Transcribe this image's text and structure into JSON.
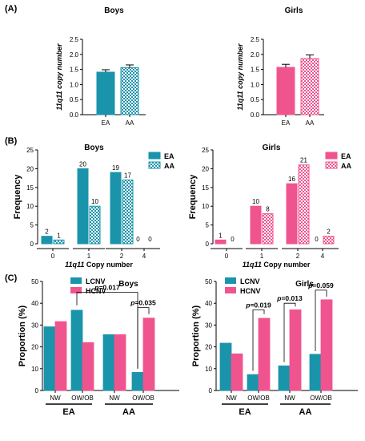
{
  "colors": {
    "teal": "#1a94ab",
    "pink": "#f0548f",
    "axis": "#000000"
  },
  "panel_labels": [
    "(A)",
    "(B)",
    "(C)"
  ],
  "chart_data": [
    {
      "id": "A-boys",
      "type": "bar",
      "title": "Boys",
      "ylabel": "11q11 copy number",
      "ylim": [
        0,
        2.5
      ],
      "yticks": [
        "0.0",
        "0.5",
        "1.0",
        "1.5",
        "2.0",
        "2.5"
      ],
      "categories": [
        "EA",
        "AA"
      ],
      "values": [
        1.41,
        1.56
      ],
      "errors": [
        0.08,
        0.09
      ]
    },
    {
      "id": "A-girls",
      "type": "bar",
      "title": "Girls",
      "ylabel": "11q11 copy number",
      "ylim": [
        0,
        2.5
      ],
      "yticks": [
        "0.0",
        "0.5",
        "1.0",
        "1.5",
        "2.0",
        "2.5"
      ],
      "categories": [
        "EA",
        "AA"
      ],
      "values": [
        1.57,
        1.86
      ],
      "errors": [
        0.1,
        0.12
      ]
    },
    {
      "id": "B-boys",
      "type": "bar",
      "title": "Boys",
      "ylabel": "Frequency",
      "xlabel_italic": "11q11",
      "xlabel_rest": " Copy number",
      "ylim": [
        0,
        25
      ],
      "yticks": [
        "0",
        "5",
        "10",
        "15",
        "20",
        "25"
      ],
      "categories": [
        "0",
        "1",
        "2",
        "4"
      ],
      "series": [
        {
          "name": "EA",
          "values": [
            2,
            20,
            19,
            0
          ],
          "labels": [
            "2",
            "20",
            "19",
            "0"
          ]
        },
        {
          "name": "AA",
          "values": [
            1,
            10,
            17,
            0
          ],
          "labels": [
            "1",
            "10",
            "17",
            "0"
          ]
        }
      ]
    },
    {
      "id": "B-girls",
      "type": "bar",
      "title": "Girls",
      "ylabel": "Frequency",
      "xlabel_italic": "11q11",
      "xlabel_rest": " Copy number",
      "ylim": [
        0,
        25
      ],
      "yticks": [
        "0",
        "5",
        "10",
        "15",
        "20",
        "25"
      ],
      "categories": [
        "0",
        "1",
        "2",
        "4"
      ],
      "series": [
        {
          "name": "EA",
          "values": [
            1,
            10,
            16,
            0
          ],
          "labels": [
            "1",
            "10",
            "16",
            "0"
          ]
        },
        {
          "name": "AA",
          "values": [
            0,
            8,
            21,
            2
          ],
          "labels": [
            "0",
            "8",
            "21",
            "2"
          ]
        }
      ]
    },
    {
      "id": "C-boys",
      "type": "bar",
      "title": "Boys",
      "ylabel": "Proportion (%)",
      "ylim": [
        0,
        50
      ],
      "yticks": [
        "0",
        "10",
        "20",
        "30",
        "40",
        "50"
      ],
      "categories": [
        "NW",
        "OW/OB",
        "NW",
        "OW/OB"
      ],
      "groups": [
        "EA",
        "AA"
      ],
      "series": [
        {
          "name": "LCNV",
          "values": [
            29.2,
            36.8,
            25.6,
            8.3
          ]
        },
        {
          "name": "HCNV",
          "values": [
            31.6,
            22.0,
            25.6,
            33.2
          ]
        }
      ],
      "pvalues": [
        "p=0.017",
        "p=0.035"
      ]
    },
    {
      "id": "C-girls",
      "type": "bar",
      "title": "Girls",
      "ylabel": "Proportion (%)",
      "ylim": [
        0,
        50
      ],
      "yticks": [
        "0",
        "10",
        "20",
        "30",
        "40",
        "50"
      ],
      "categories": [
        "NW",
        "OW/OB",
        "NW",
        "OW/OB"
      ],
      "groups": [
        "EA",
        "AA"
      ],
      "series": [
        {
          "name": "LCNV",
          "values": [
            21.7,
            7.3,
            11.3,
            16.6
          ]
        },
        {
          "name": "HCNV",
          "values": [
            16.8,
            33.1,
            37.0,
            41.6
          ]
        }
      ],
      "pvalues": [
        "p=0.019",
        "p=0.013",
        "p=0.059"
      ]
    }
  ]
}
